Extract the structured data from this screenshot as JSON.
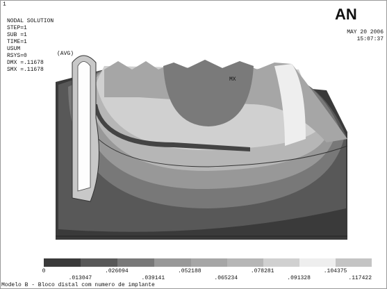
{
  "corner_number": "1",
  "header": {
    "lines": [
      "NODAL SOLUTION",
      "STEP=1",
      "SUB =1",
      "TIME=1",
      "USUM",
      "RSYS=0",
      "DMX =.11678",
      "SMX =.11678"
    ],
    "avg": "(AVG)"
  },
  "logo": "AN",
  "date": "MAY 20 2006",
  "time": "15:07:37",
  "max_marker": "MX",
  "legend": {
    "labels": [
      "0",
      ".013047",
      ".026094",
      ".039141",
      ".052188",
      ".065234",
      ".078281",
      ".091328",
      ".104375",
      ".117422"
    ]
  },
  "caption": "Modelo B - Bloco distal com numero de implante"
}
